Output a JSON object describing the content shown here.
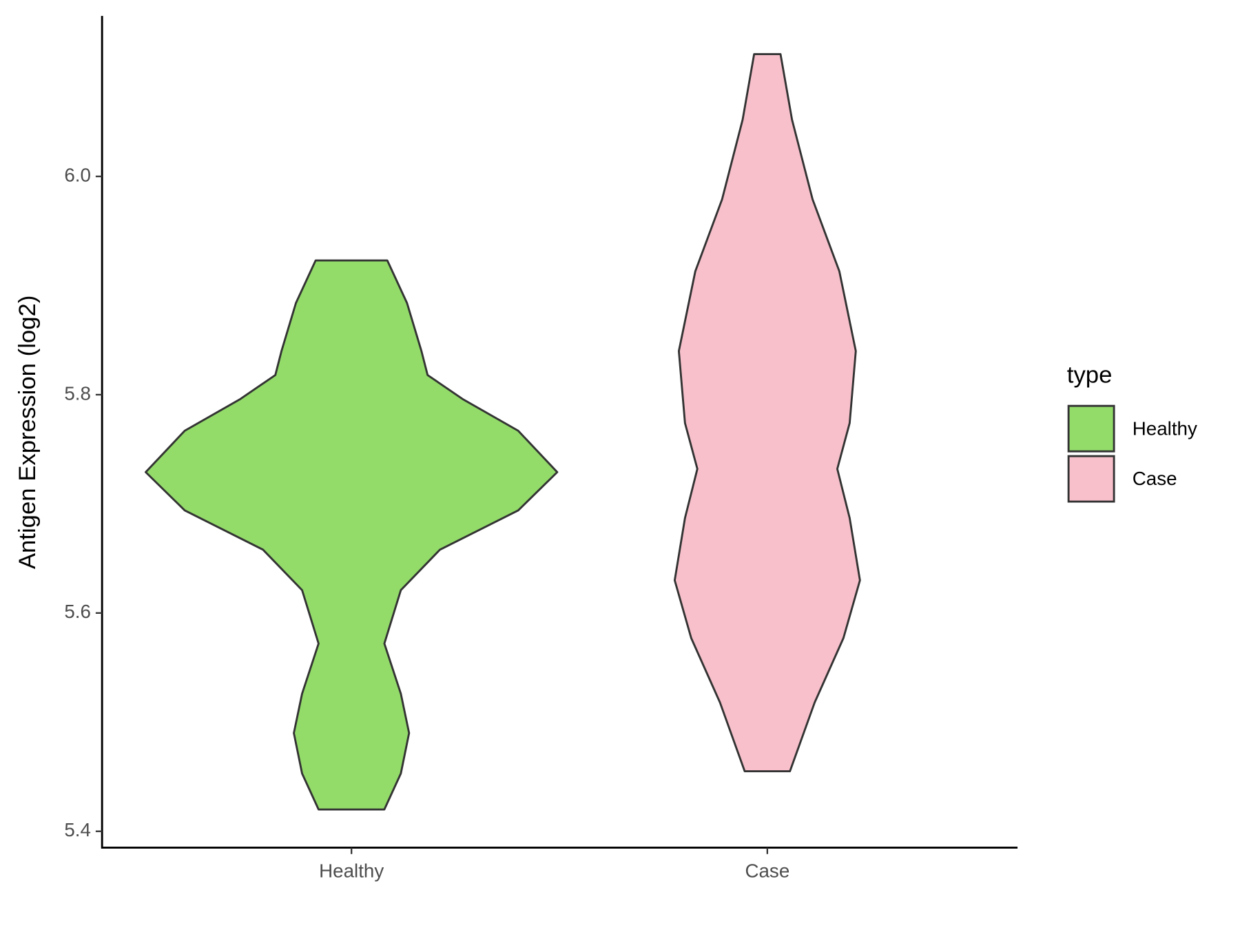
{
  "chart_data": {
    "type": "violin",
    "y_label": "Antigen Expression (log2)",
    "categories": [
      "Healthy",
      "Case"
    ],
    "series": [
      {
        "name": "Healthy",
        "color": "#93dc6a",
        "values": [
          5.923,
          5.884,
          5.84,
          5.818,
          5.796,
          5.767,
          5.729,
          5.694,
          5.658,
          5.621,
          5.572,
          5.526,
          5.49,
          5.453,
          5.42
        ],
        "density": [
          0.174,
          0.27,
          0.34,
          0.37,
          0.54,
          0.81,
          1.0,
          0.81,
          0.43,
          0.24,
          0.16,
          0.24,
          0.28,
          0.24,
          0.16
        ]
      },
      {
        "name": "Case",
        "color": "#f7c0cb",
        "values": [
          6.112,
          6.052,
          5.979,
          5.913,
          5.84,
          5.774,
          5.732,
          5.687,
          5.63,
          5.577,
          5.518,
          5.455
        ],
        "density": [
          0.064,
          0.12,
          0.22,
          0.35,
          0.43,
          0.4,
          0.34,
          0.4,
          0.45,
          0.37,
          0.23,
          0.11
        ]
      }
    ],
    "ylim": [
      5.385,
      6.147
    ],
    "yticks": [
      5.4,
      5.6,
      5.8,
      {
        "value": 6.0,
        "label": "6.0"
      }
    ],
    "legend_title": "type",
    "legend": "right"
  }
}
